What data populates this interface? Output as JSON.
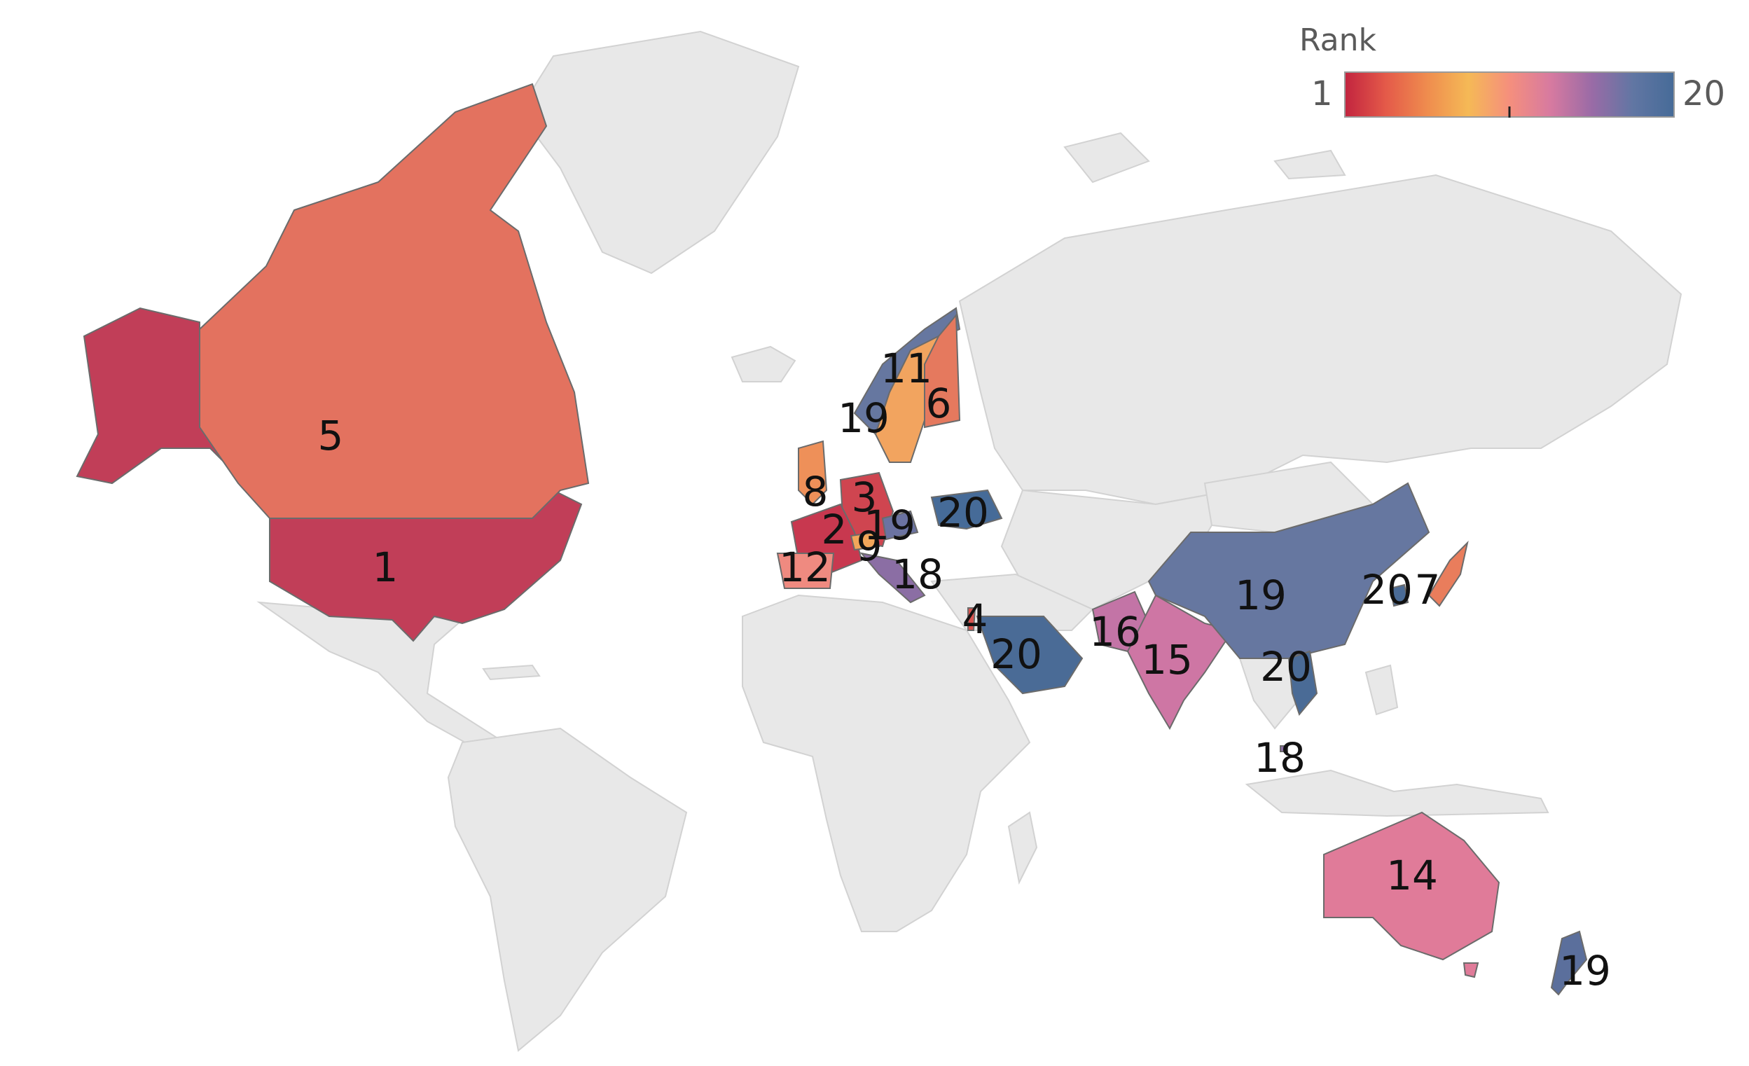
{
  "legend": {
    "title": "Rank",
    "min_label": "1",
    "max_label": "20",
    "min_value": 1,
    "max_value": 20,
    "gradient": [
      "#c2243f",
      "#e45a49",
      "#ef8c4e",
      "#f5b956",
      "#f58f7d",
      "#d77aa0",
      "#9a6ba6",
      "#6176a3",
      "#466b98"
    ]
  },
  "base_color": "#e8e8e8",
  "regions": [
    {
      "id": "usa",
      "rank_label": "1",
      "rank": 1,
      "color": "#c13e58"
    },
    {
      "id": "alaska",
      "rank_label": "",
      "rank": 1,
      "color": "#c13e58"
    },
    {
      "id": "canada",
      "rank_label": "5",
      "rank": 5,
      "color": "#e3725f"
    },
    {
      "id": "norway",
      "rank_label": "19",
      "rank": 19,
      "color": "#6677a0"
    },
    {
      "id": "sweden",
      "rank_label": "11",
      "rank": 11,
      "color": "#f2a45f"
    },
    {
      "id": "finland",
      "rank_label": "6",
      "rank": 6,
      "color": "#e5795e"
    },
    {
      "id": "uk",
      "rank_label": "8",
      "rank": 8,
      "color": "#ee9059"
    },
    {
      "id": "germany",
      "rank_label": "3",
      "rank": 3,
      "color": "#cf4550"
    },
    {
      "id": "france",
      "rank_label": "2",
      "rank": 2,
      "color": "#c8384f"
    },
    {
      "id": "switzerland",
      "rank_label": "9",
      "rank": 9,
      "color": "#f2a65a"
    },
    {
      "id": "austria",
      "rank_label": "19",
      "rank": 19,
      "color": "#6b73a1"
    },
    {
      "id": "spain",
      "rank_label": "12",
      "rank": 12,
      "color": "#ef8a80"
    },
    {
      "id": "italy",
      "rank_label": "18",
      "rank": 18,
      "color": "#8b6ea4"
    },
    {
      "id": "ukraine",
      "rank_label": "20",
      "rank": 20,
      "color": "#466b98"
    },
    {
      "id": "israel",
      "rank_label": "4",
      "rank": 4,
      "color": "#d8534e"
    },
    {
      "id": "saudi-arabia",
      "rank_label": "20",
      "rank": 20,
      "color": "#4a6b96"
    },
    {
      "id": "pakistan",
      "rank_label": "16",
      "rank": 16,
      "color": "#c374a6"
    },
    {
      "id": "india",
      "rank_label": "15",
      "rank": 15,
      "color": "#ce76a4"
    },
    {
      "id": "china",
      "rank_label": "19",
      "rank": 19,
      "color": "#6677a0"
    },
    {
      "id": "south-korea",
      "rank_label": "20",
      "rank": 20,
      "color": "#4a6b96"
    },
    {
      "id": "japan",
      "rank_label": "7",
      "rank": 7,
      "color": "#e97d5c"
    },
    {
      "id": "vietnam",
      "rank_label": "20",
      "rank": 20,
      "color": "#4a6b96"
    },
    {
      "id": "singapore",
      "rank_label": "18",
      "rank": 18,
      "color": "#8b6ea4"
    },
    {
      "id": "australia",
      "rank_label": "14",
      "rank": 14,
      "color": "#e07b99"
    },
    {
      "id": "new-zealand",
      "rank_label": "19",
      "rank": 19,
      "color": "#5b6f9c"
    }
  ]
}
